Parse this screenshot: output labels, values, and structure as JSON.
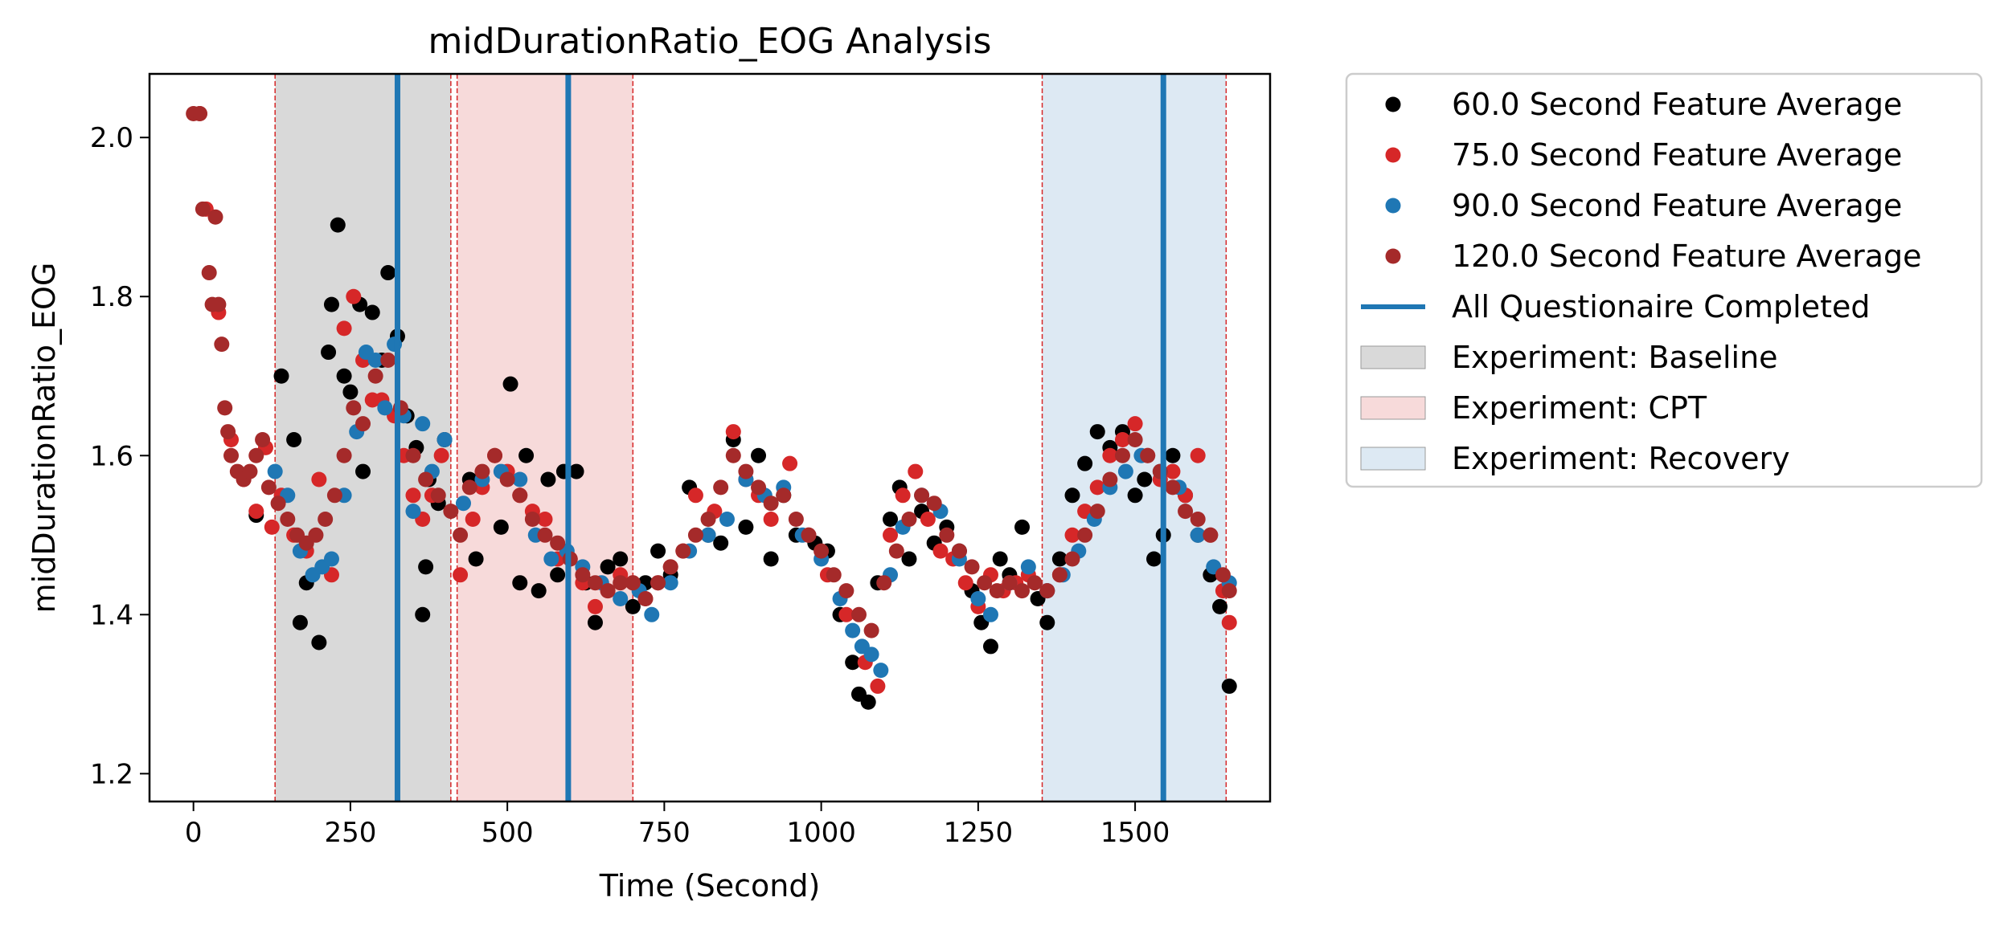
{
  "chart_data": {
    "type": "scatter",
    "title": "midDurationRatio_EOG Analysis",
    "xlabel": "Time (Second)",
    "ylabel": "midDurationRatio_EOG",
    "xlim": [
      -70,
      1715
    ],
    "ylim": [
      1.165,
      2.08
    ],
    "x_ticks": [
      0,
      250,
      500,
      750,
      1000,
      1250,
      1500
    ],
    "y_ticks": [
      1.2,
      1.4,
      1.6,
      1.8,
      2.0
    ],
    "tick_labels_x": [
      "0",
      "250",
      "500",
      "750",
      "1000",
      "1250",
      "1500"
    ],
    "tick_labels_y": [
      "1.2",
      "1.4",
      "1.6",
      "1.8",
      "2.0"
    ],
    "grid": false,
    "legend_position": "outside-right",
    "regions": [
      {
        "name": "Experiment: Baseline",
        "x_start": 130,
        "x_end": 410,
        "color": "#d9d9d9"
      },
      {
        "name": "Experiment: CPT",
        "x_start": 420,
        "x_end": 700,
        "color": "#f7dada"
      },
      {
        "name": "Experiment: Recovery",
        "x_start": 1352,
        "x_end": 1645,
        "color": "#dde9f3"
      }
    ],
    "boundary_lines": [
      130,
      410,
      420,
      700,
      1352,
      1645
    ],
    "questionnaire_lines": {
      "name": "All Questionaire Completed",
      "x": [
        325,
        597,
        1545
      ],
      "color": "#1f77b4"
    },
    "series": [
      {
        "name": "60.0 Second Feature Average",
        "color": "#000000",
        "x": [
          100,
          140,
          160,
          170,
          180,
          200,
          215,
          220,
          230,
          240,
          250,
          265,
          270,
          285,
          300,
          310,
          325,
          340,
          355,
          365,
          370,
          375,
          390,
          400,
          440,
          450,
          490,
          505,
          520,
          530,
          550,
          565,
          580,
          590,
          610,
          625,
          640,
          660,
          680,
          700,
          720,
          740,
          760,
          790,
          820,
          840,
          860,
          880,
          900,
          920,
          940,
          960,
          990,
          1010,
          1030,
          1050,
          1060,
          1075,
          1090,
          1110,
          1125,
          1140,
          1160,
          1180,
          1200,
          1220,
          1240,
          1255,
          1270,
          1285,
          1300,
          1320,
          1345,
          1360,
          1380,
          1400,
          1420,
          1440,
          1460,
          1480,
          1500,
          1515,
          1530,
          1545,
          1560,
          1580,
          1600,
          1620,
          1635,
          1650
        ],
        "y": [
          1.525,
          1.7,
          1.62,
          1.39,
          1.44,
          1.365,
          1.73,
          1.79,
          1.89,
          1.7,
          1.68,
          1.79,
          1.58,
          1.78,
          1.72,
          1.83,
          1.75,
          1.65,
          1.61,
          1.4,
          1.46,
          1.57,
          1.54,
          1.62,
          1.57,
          1.47,
          1.51,
          1.69,
          1.44,
          1.6,
          1.43,
          1.57,
          1.45,
          1.58,
          1.58,
          1.44,
          1.39,
          1.46,
          1.47,
          1.41,
          1.44,
          1.48,
          1.45,
          1.56,
          1.5,
          1.49,
          1.62,
          1.51,
          1.6,
          1.47,
          1.55,
          1.5,
          1.49,
          1.48,
          1.4,
          1.34,
          1.3,
          1.29,
          1.44,
          1.52,
          1.56,
          1.47,
          1.53,
          1.49,
          1.51,
          1.48,
          1.43,
          1.39,
          1.36,
          1.47,
          1.45,
          1.51,
          1.42,
          1.39,
          1.47,
          1.55,
          1.59,
          1.63,
          1.61,
          1.63,
          1.55,
          1.57,
          1.47,
          1.5,
          1.6,
          1.55,
          1.5,
          1.45,
          1.41,
          1.31
        ]
      },
      {
        "name": "75.0 Second Feature Average",
        "color": "#d62728",
        "x": [
          10,
          20,
          40,
          60,
          80,
          100,
          115,
          125,
          140,
          160,
          180,
          200,
          220,
          240,
          255,
          270,
          285,
          300,
          320,
          335,
          350,
          365,
          380,
          395,
          425,
          445,
          460,
          480,
          500,
          520,
          540,
          560,
          580,
          600,
          620,
          640,
          660,
          680,
          700,
          720,
          740,
          760,
          780,
          800,
          830,
          860,
          880,
          900,
          920,
          950,
          980,
          1010,
          1040,
          1070,
          1090,
          1110,
          1130,
          1150,
          1170,
          1190,
          1210,
          1230,
          1250,
          1270,
          1290,
          1310,
          1330,
          1360,
          1380,
          1400,
          1420,
          1440,
          1460,
          1480,
          1500,
          1520,
          1540,
          1560,
          1580,
          1600,
          1620,
          1640,
          1650
        ],
        "y": [
          2.03,
          1.91,
          1.78,
          1.62,
          1.57,
          1.53,
          1.61,
          1.51,
          1.55,
          1.5,
          1.48,
          1.57,
          1.45,
          1.76,
          1.8,
          1.72,
          1.67,
          1.67,
          1.65,
          1.6,
          1.55,
          1.52,
          1.55,
          1.6,
          1.45,
          1.52,
          1.56,
          1.6,
          1.58,
          1.55,
          1.53,
          1.52,
          1.47,
          1.47,
          1.44,
          1.41,
          1.43,
          1.45,
          1.44,
          1.42,
          1.44,
          1.46,
          1.48,
          1.55,
          1.53,
          1.63,
          1.57,
          1.55,
          1.52,
          1.59,
          1.5,
          1.45,
          1.4,
          1.34,
          1.31,
          1.5,
          1.55,
          1.58,
          1.52,
          1.48,
          1.47,
          1.44,
          1.41,
          1.45,
          1.43,
          1.44,
          1.45,
          1.43,
          1.45,
          1.5,
          1.53,
          1.56,
          1.6,
          1.62,
          1.64,
          1.6,
          1.57,
          1.58,
          1.55,
          1.6,
          1.5,
          1.43,
          1.39
        ]
      },
      {
        "name": "90.0 Second Feature Average",
        "color": "#1f77b4",
        "x": [
          130,
          150,
          170,
          190,
          205,
          220,
          240,
          260,
          275,
          290,
          305,
          320,
          335,
          350,
          365,
          380,
          400,
          430,
          460,
          490,
          520,
          545,
          570,
          595,
          620,
          650,
          680,
          710,
          730,
          760,
          790,
          820,
          850,
          880,
          910,
          940,
          970,
          1000,
          1030,
          1050,
          1065,
          1080,
          1095,
          1110,
          1130,
          1160,
          1190,
          1220,
          1250,
          1270,
          1300,
          1330,
          1360,
          1385,
          1410,
          1435,
          1460,
          1485,
          1510,
          1540,
          1570,
          1600,
          1625,
          1650
        ],
        "y": [
          1.58,
          1.55,
          1.48,
          1.45,
          1.46,
          1.47,
          1.55,
          1.63,
          1.73,
          1.72,
          1.66,
          1.74,
          1.65,
          1.53,
          1.64,
          1.58,
          1.62,
          1.54,
          1.57,
          1.58,
          1.57,
          1.5,
          1.47,
          1.48,
          1.46,
          1.44,
          1.42,
          1.43,
          1.4,
          1.44,
          1.48,
          1.5,
          1.52,
          1.57,
          1.55,
          1.56,
          1.5,
          1.47,
          1.42,
          1.38,
          1.36,
          1.35,
          1.33,
          1.45,
          1.51,
          1.55,
          1.53,
          1.47,
          1.42,
          1.4,
          1.44,
          1.46,
          1.43,
          1.45,
          1.48,
          1.52,
          1.56,
          1.58,
          1.6,
          1.58,
          1.56,
          1.5,
          1.46,
          1.44
        ]
      },
      {
        "name": "120.0 Second Feature Average",
        "color": "#a52a2a",
        "x": [
          0,
          10,
          15,
          25,
          30,
          35,
          40,
          45,
          50,
          55,
          60,
          70,
          80,
          90,
          100,
          110,
          120,
          135,
          150,
          165,
          180,
          195,
          210,
          225,
          240,
          255,
          270,
          290,
          310,
          330,
          350,
          370,
          390,
          410,
          425,
          440,
          460,
          480,
          500,
          520,
          540,
          560,
          580,
          600,
          620,
          640,
          660,
          680,
          700,
          720,
          740,
          760,
          780,
          800,
          820,
          840,
          860,
          880,
          900,
          920,
          940,
          960,
          980,
          1000,
          1020,
          1040,
          1060,
          1080,
          1100,
          1120,
          1140,
          1160,
          1180,
          1200,
          1220,
          1240,
          1260,
          1280,
          1300,
          1320,
          1340,
          1360,
          1380,
          1400,
          1420,
          1440,
          1460,
          1480,
          1500,
          1520,
          1540,
          1560,
          1580,
          1600,
          1620,
          1640,
          1650
        ],
        "y": [
          2.03,
          2.03,
          1.91,
          1.83,
          1.79,
          1.9,
          1.79,
          1.74,
          1.66,
          1.63,
          1.6,
          1.58,
          1.57,
          1.58,
          1.6,
          1.62,
          1.56,
          1.54,
          1.52,
          1.5,
          1.49,
          1.5,
          1.52,
          1.55,
          1.6,
          1.66,
          1.64,
          1.7,
          1.72,
          1.66,
          1.6,
          1.57,
          1.55,
          1.53,
          1.5,
          1.56,
          1.58,
          1.6,
          1.57,
          1.55,
          1.52,
          1.5,
          1.49,
          1.47,
          1.45,
          1.44,
          1.43,
          1.44,
          1.44,
          1.42,
          1.44,
          1.46,
          1.48,
          1.5,
          1.52,
          1.56,
          1.6,
          1.58,
          1.56,
          1.54,
          1.55,
          1.52,
          1.5,
          1.48,
          1.45,
          1.43,
          1.4,
          1.38,
          1.44,
          1.48,
          1.52,
          1.55,
          1.54,
          1.5,
          1.48,
          1.46,
          1.44,
          1.43,
          1.44,
          1.43,
          1.44,
          1.43,
          1.45,
          1.47,
          1.5,
          1.53,
          1.57,
          1.6,
          1.62,
          1.6,
          1.58,
          1.56,
          1.53,
          1.52,
          1.5,
          1.45,
          1.43
        ]
      }
    ]
  }
}
